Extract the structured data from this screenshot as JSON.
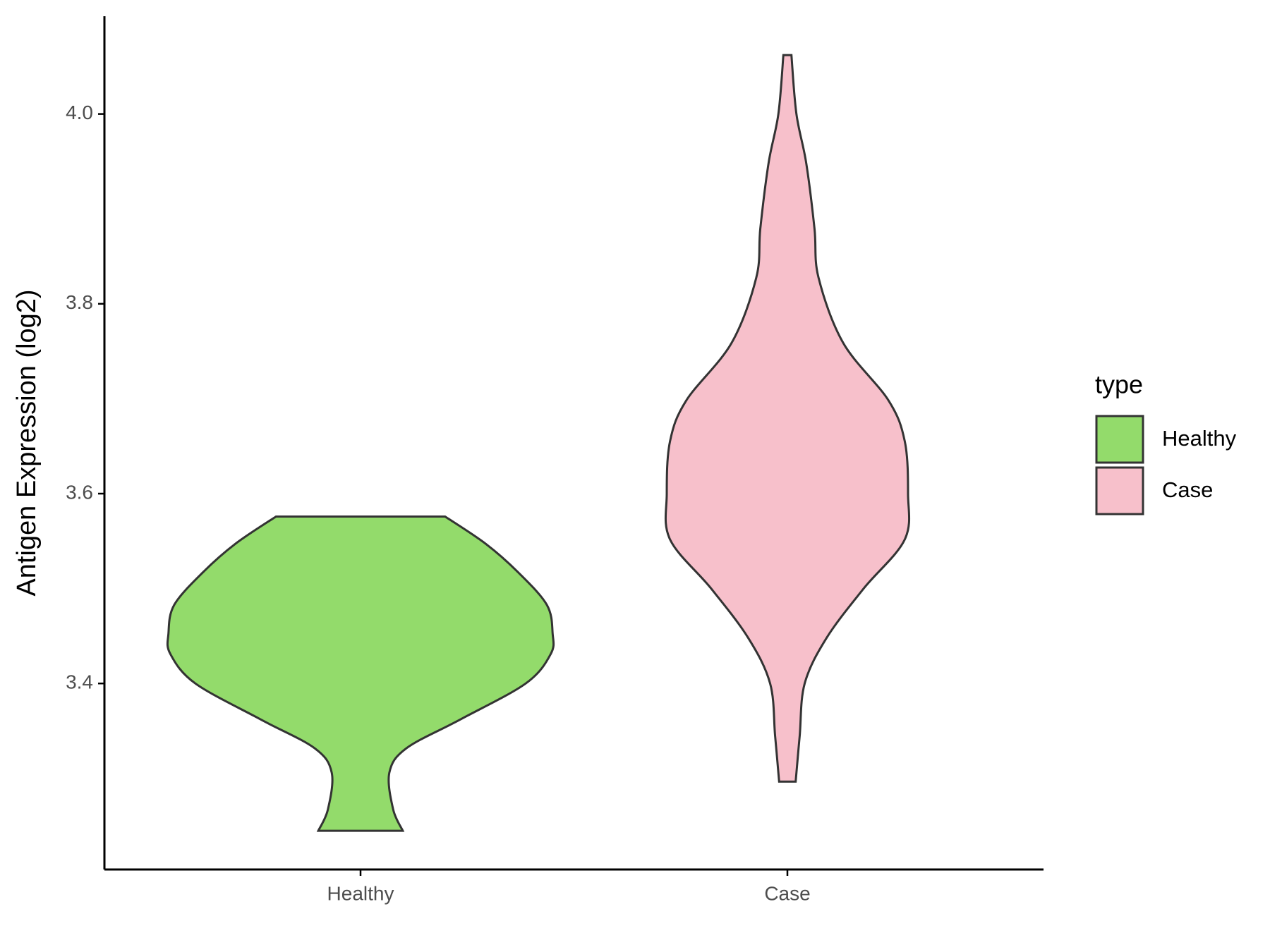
{
  "chart_data": {
    "type": "violin",
    "y_label": "Antigen Expression (log2)",
    "categories": [
      "Healthy",
      "Case"
    ],
    "series": [
      {
        "name": "Healthy",
        "color": "#93DB6B",
        "y": [
          3.5759,
          3.5474,
          3.5172,
          3.4828,
          3.4526,
          3.431,
          3.4,
          3.3621,
          3.3319,
          3.306,
          3.2672,
          3.2448
        ],
        "width": [
          0.44,
          0.65,
          0.82,
          0.97,
          1.0,
          0.99,
          0.86,
          0.52,
          0.24,
          0.15,
          0.17,
          0.22
        ]
      },
      {
        "name": "Case",
        "color": "#F7C0CB",
        "y": [
          4.062,
          4.0,
          3.9483,
          3.8793,
          3.8276,
          3.7586,
          3.6983,
          3.6552,
          3.6,
          3.5517,
          3.5,
          3.4483,
          3.4,
          3.3448,
          3.2966
        ],
        "width": [
          0.021,
          0.047,
          0.098,
          0.141,
          0.162,
          0.291,
          0.526,
          0.611,
          0.628,
          0.611,
          0.397,
          0.205,
          0.09,
          0.064,
          0.043
        ]
      }
    ],
    "ylim": [
      3.204,
      4.103
    ],
    "yticks": [
      {
        "value": 3.4,
        "label": "3.4"
      },
      {
        "value": 3.6,
        "label": "3.6"
      },
      {
        "value": 3.8,
        "label": "3.8"
      },
      {
        "value": 4.0,
        "label": "4.0"
      }
    ],
    "legend_title": "type",
    "legend_position": "right"
  }
}
